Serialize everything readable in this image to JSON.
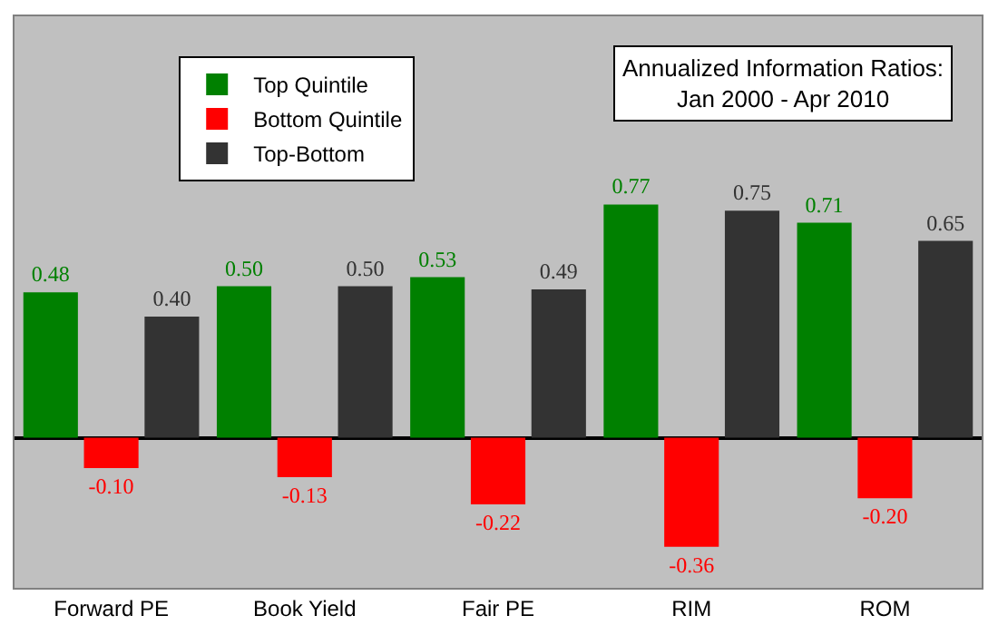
{
  "chart_data": {
    "type": "bar",
    "title": "Annualized Information Ratios:\nJan 2000 - Apr 2010",
    "categories": [
      "Forward PE",
      "Book Yield",
      "Fair PE",
      "RIM",
      "ROM"
    ],
    "series": [
      {
        "name": "Top Quintile",
        "color": "#008000",
        "values": [
          0.48,
          0.5,
          0.53,
          0.77,
          0.71
        ],
        "value_labels": [
          "0.48",
          "0.50",
          "0.53",
          "0.77",
          "0.71"
        ]
      },
      {
        "name": "Bottom Quintile",
        "color": "#ff0000",
        "values": [
          -0.1,
          -0.13,
          -0.22,
          -0.36,
          -0.2
        ],
        "value_labels": [
          "-0.10",
          "-0.13",
          "-0.22",
          "-0.36",
          "-0.20"
        ]
      },
      {
        "name": "Top-Bottom",
        "color": "#333333",
        "values": [
          0.4,
          0.5,
          0.49,
          0.75,
          0.65
        ],
        "value_labels": [
          "0.40",
          "0.50",
          "0.49",
          "0.75",
          "0.65"
        ]
      }
    ],
    "legend": "top left",
    "grid": false
  }
}
